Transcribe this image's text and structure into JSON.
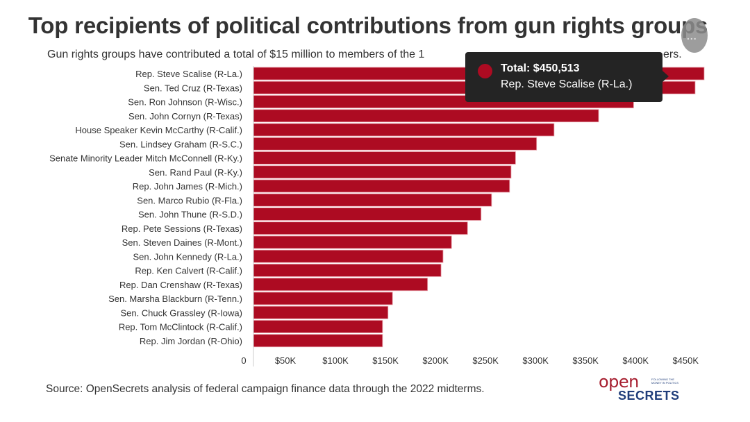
{
  "title": "Top recipients of political contributions from gun rights groups",
  "subtitle_visible_start": "Gun rights groups have contributed a total of $15 million to members of the 1",
  "subtitle_visible_end": "ers.",
  "source": "Source: OpenSecrets analysis of federal campaign finance data through the 2022 midterms.",
  "logo": {
    "open": "open",
    "tagline": "FOLLOWING THE MONEY IN POLITICS",
    "secrets": "SECRETS"
  },
  "tooltip": {
    "total_label": "Total: $450,513",
    "name": "Rep. Steve Scalise (R-La.)"
  },
  "menu_button": {
    "icon": "ellipsis-icon",
    "glyph": "..."
  },
  "colors": {
    "bar": "#ad0b22",
    "tooltip_bg": "#242424",
    "text": "#333333"
  },
  "chart_data": {
    "type": "bar",
    "orientation": "horizontal",
    "title": "Top recipients of political contributions from gun rights groups",
    "xlabel": "",
    "ylabel": "",
    "xlim": [
      0,
      470000
    ],
    "x_ticks": [
      0,
      50000,
      100000,
      150000,
      200000,
      250000,
      300000,
      350000,
      400000,
      450000
    ],
    "x_tick_labels": [
      "0",
      "$50K",
      "$100K",
      "$150K",
      "$200K",
      "$250K",
      "$300K",
      "$350K",
      "$400K",
      "$450K"
    ],
    "grid": false,
    "legend": "none",
    "categories": [
      "Rep. Steve Scalise (R-La.)",
      "Sen. Ted Cruz (R-Texas)",
      "Sen. Ron Johnson (R-Wisc.)",
      "Sen. John Cornyn (R-Texas)",
      "House Speaker Kevin McCarthy (R-Calif.)",
      "Sen. Lindsey Graham (R-S.C.)",
      "Senate Minority Leader Mitch McConnell (R-Ky.)",
      "Sen. Rand Paul (R-Ky.)",
      "Rep. John James (R-Mich.)",
      "Sen. Marco Rubio (R-Fla.)",
      "Sen. John Thune (R-S.D.)",
      "Rep. Pete Sessions (R-Texas)",
      "Sen. Steven Daines (R-Mont.)",
      "Sen. John Kennedy (R-La.)",
      "Rep. Ken Calvert (R-Calif.)",
      "Rep. Dan Crenshaw (R-Texas)",
      "Sen. Marsha Blackburn (R-Tenn.)",
      "Sen. Chuck Grassley (R-Iowa)",
      "Rep. Tom McClintock (R-Calif.)",
      "Rep. Jim Jordan (R-Ohio)"
    ],
    "values": [
      450513,
      441500,
      380000,
      345000,
      300500,
      283000,
      262000,
      257500,
      256000,
      238000,
      227500,
      214000,
      198000,
      189500,
      187500,
      174000,
      139000,
      134500,
      129000,
      129000
    ]
  }
}
